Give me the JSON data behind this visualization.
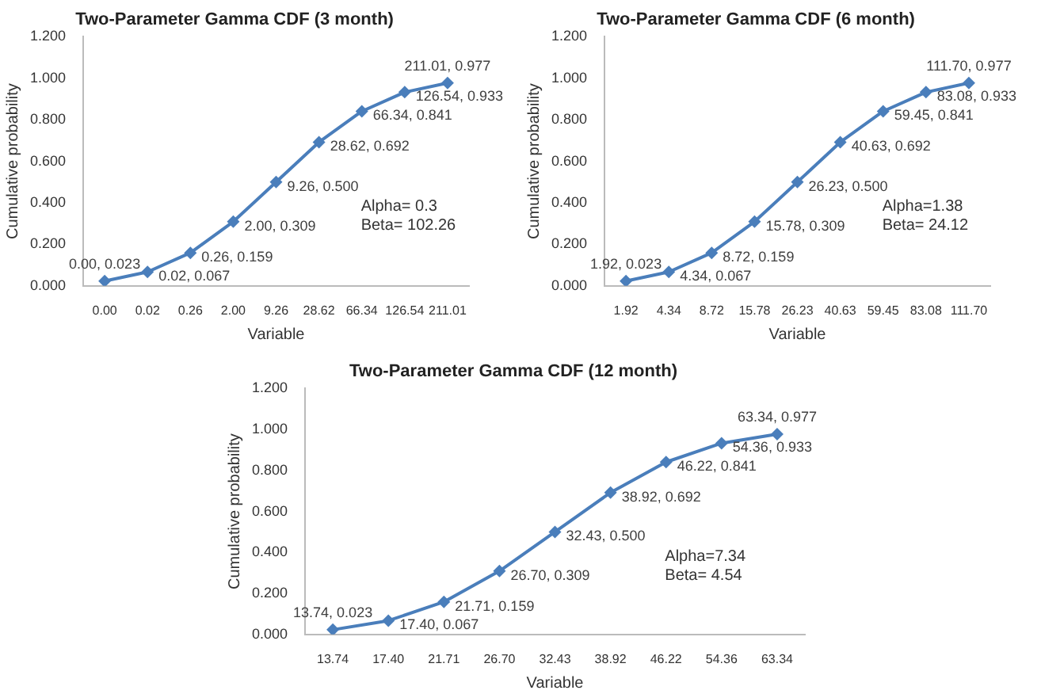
{
  "chart_data": [
    {
      "type": "line",
      "title": "Two-Parameter Gamma CDF (3 month)",
      "xlabel": "Variable",
      "ylabel": "Cumulative probability",
      "categories": [
        "0.00",
        "0.02",
        "0.26",
        "2.00",
        "9.26",
        "28.62",
        "66.34",
        "126.54",
        "211.01"
      ],
      "series": [
        {
          "color": "#4a7ebb",
          "values": [
            0.023,
            0.067,
            0.159,
            0.309,
            0.5,
            0.692,
            0.841,
            0.933,
            0.977
          ],
          "value_labels": [
            "0.00, 0.023",
            "0.02, 0.067",
            "0.26, 0.159",
            "2.00, 0.309",
            "9.26, 0.500",
            "28.62, 0.692",
            "66.34, 0.841",
            "126.54, 0.933",
            "211.01, 0.977"
          ]
        }
      ],
      "ylim": [
        0,
        1.2
      ],
      "yticks": [
        {
          "value": 0,
          "label": "0.000"
        },
        {
          "value": 0.2,
          "label": "0.200"
        },
        {
          "value": 0.4,
          "label": "0.400"
        },
        {
          "value": 0.6,
          "label": "0.600"
        },
        {
          "value": 0.8,
          "label": "0.800"
        },
        {
          "value": 1,
          "label": "1.000"
        },
        {
          "value": 1.2,
          "label": "1.200"
        }
      ],
      "annotations": [
        "Alpha= 0.3",
        "Beta= 102.26"
      ],
      "grid": false,
      "legend": false,
      "marker": "diamond",
      "line_style": "solid"
    },
    {
      "type": "line",
      "title": "Two-Parameter Gamma CDF (6 month)",
      "xlabel": "Variable",
      "ylabel": "Cumulative probability",
      "categories": [
        "1.92",
        "4.34",
        "8.72",
        "15.78",
        "26.23",
        "40.63",
        "59.45",
        "83.08",
        "111.70"
      ],
      "series": [
        {
          "color": "#4a7ebb",
          "values": [
            0.023,
            0.067,
            0.159,
            0.309,
            0.5,
            0.692,
            0.841,
            0.933,
            0.977
          ],
          "value_labels": [
            "1.92, 0.023",
            "4.34, 0.067",
            "8.72, 0.159",
            "15.78, 0.309",
            "26.23, 0.500",
            "40.63, 0.692",
            "59.45, 0.841",
            "83.08, 0.933",
            "111.70, 0.977"
          ]
        }
      ],
      "ylim": [
        0,
        1.2
      ],
      "yticks": [
        {
          "value": 0,
          "label": "0.000"
        },
        {
          "value": 0.2,
          "label": "0.200"
        },
        {
          "value": 0.4,
          "label": "0.400"
        },
        {
          "value": 0.6,
          "label": "0.600"
        },
        {
          "value": 0.8,
          "label": "0.800"
        },
        {
          "value": 1,
          "label": "1.000"
        },
        {
          "value": 1.2,
          "label": "1.200"
        }
      ],
      "annotations": [
        "Alpha=1.38",
        "Beta= 24.12"
      ],
      "grid": false,
      "legend": false,
      "marker": "diamond",
      "line_style": "solid"
    },
    {
      "type": "line",
      "title": "Two-Parameter Gamma CDF (12 month)",
      "xlabel": "Variable",
      "ylabel": "Cumulative probability",
      "categories": [
        "13.74",
        "17.40",
        "21.71",
        "26.70",
        "32.43",
        "38.92",
        "46.22",
        "54.36",
        "63.34"
      ],
      "series": [
        {
          "color": "#4a7ebb",
          "values": [
            0.023,
            0.067,
            0.159,
            0.309,
            0.5,
            0.692,
            0.841,
            0.933,
            0.977
          ],
          "value_labels": [
            "13.74, 0.023",
            "17.40, 0.067",
            "21.71, 0.159",
            "26.70, 0.309",
            "32.43, 0.500",
            "38.92, 0.692",
            "46.22, 0.841",
            "54.36, 0.933",
            "63.34, 0.977"
          ]
        }
      ],
      "ylim": [
        0,
        1.2
      ],
      "yticks": [
        {
          "value": 0,
          "label": "0.000"
        },
        {
          "value": 0.2,
          "label": "0.200"
        },
        {
          "value": 0.4,
          "label": "0.400"
        },
        {
          "value": 0.6,
          "label": "0.600"
        },
        {
          "value": 0.8,
          "label": "0.800"
        },
        {
          "value": 1,
          "label": "1.000"
        },
        {
          "value": 1.2,
          "label": "1.200"
        }
      ],
      "annotations": [
        "Alpha=7.34",
        "Beta= 4.54"
      ],
      "grid": false,
      "legend": false,
      "marker": "diamond",
      "line_style": "solid"
    }
  ]
}
